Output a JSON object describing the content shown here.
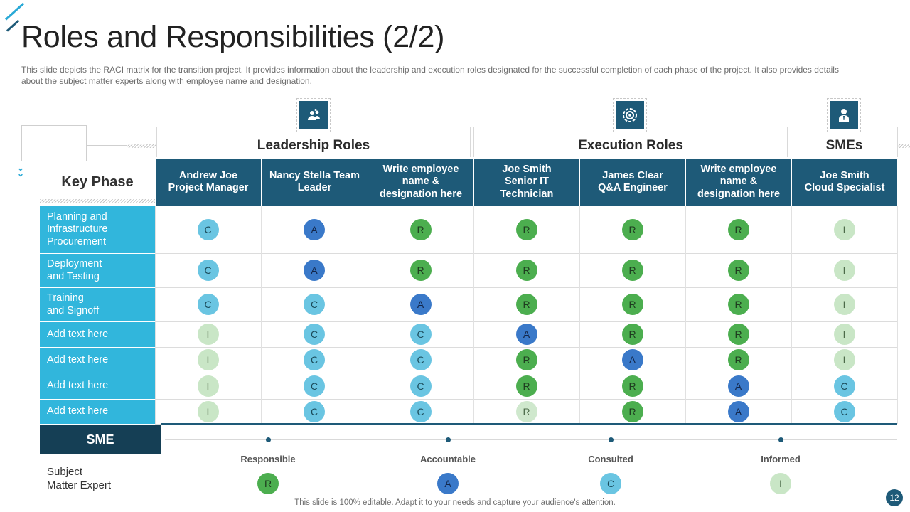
{
  "title": "Roles and Responsibilities (2/2)",
  "description": "This slide depicts the RACI matrix for the transition project. It provides  information about the leadership and execution roles designated for the successful completion of each phase of the project. It also provides  details about the subject matter experts along with employee name and designation.",
  "groups": {
    "leadership": "Leadership Roles",
    "execution": "Execution Roles",
    "smes": "SMEs"
  },
  "icons": {
    "leadership": "team-leader-icon",
    "execution": "target-gear-icon",
    "smes": "person-tie-icon"
  },
  "key_phase_label": "Key Phase",
  "columns": [
    [
      "Andrew Joe",
      "Project Manager"
    ],
    [
      "Nancy Stella Team",
      "Leader"
    ],
    [
      "Write employee",
      "name &",
      "designation here"
    ],
    [
      "Joe Smith",
      "Senior IT",
      "Technician"
    ],
    [
      "James Clear",
      "Q&A Engineer"
    ],
    [
      "Write employee",
      "name &",
      "designation here"
    ],
    [
      "Joe Smith",
      "Cloud Specialist"
    ]
  ],
  "rows": [
    {
      "label": [
        "Planning and",
        "Infrastructure",
        "Procurement"
      ],
      "values": [
        "C",
        "A",
        "R",
        "R",
        "R",
        "R",
        "I"
      ]
    },
    {
      "label": [
        "Deployment",
        "and Testing"
      ],
      "values": [
        "C",
        "A",
        "R",
        "R",
        "R",
        "R",
        "I"
      ]
    },
    {
      "label": [
        "Training",
        "and Signoff"
      ],
      "values": [
        "C",
        "C",
        "A",
        "R",
        "R",
        "R",
        "I"
      ]
    },
    {
      "label": [
        "Add text here"
      ],
      "values": [
        "I",
        "C",
        "C",
        "A",
        "R",
        "R",
        "I"
      ]
    },
    {
      "label": [
        "Add text here"
      ],
      "values": [
        "I",
        "C",
        "C",
        "R",
        "A",
        "R",
        "I"
      ]
    },
    {
      "label": [
        "Add text here"
      ],
      "values": [
        "I",
        "C",
        "C",
        "R",
        "R",
        "A",
        "C"
      ]
    },
    {
      "label": [
        "Add text here"
      ],
      "values": [
        "I",
        "C",
        "C",
        "R",
        "R",
        "A",
        "C"
      ]
    }
  ],
  "sme": {
    "label": "SME",
    "description_line1": "Subject",
    "description_line2": "Matter Expert"
  },
  "legend": [
    {
      "label": "Responsible",
      "letter": "R"
    },
    {
      "label": "Accountable",
      "letter": "A"
    },
    {
      "label": "Consulted",
      "letter": "C"
    },
    {
      "label": "Informed",
      "letter": "I"
    }
  ],
  "footer": "This slide is 100% editable. Adapt it to your needs and capture your audience's attention.",
  "page_number": "12",
  "colors": {
    "header_dark": "#1e5a78",
    "row_label": "#31b6dc",
    "responsible": "#4cae4f",
    "accountable": "#3a79c9",
    "consulted": "#6ac5e2",
    "informed": "#c9e6c6"
  }
}
